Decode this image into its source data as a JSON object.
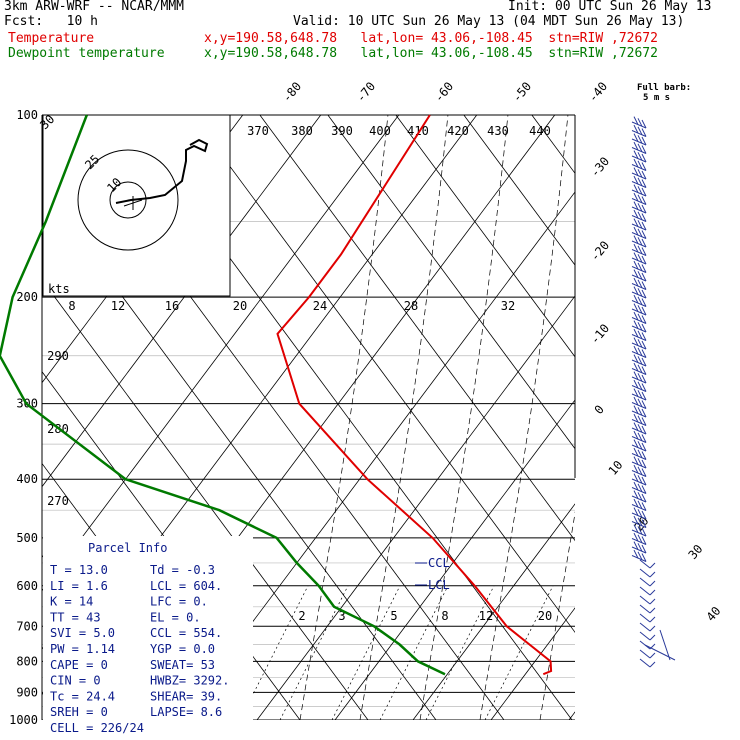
{
  "header": {
    "line1_left": "3km ARW-WRF -- NCAR/MMM",
    "line1_right": "Init: 00 UTC Sun 26 May 13",
    "line2_left": "Fcst:   10 h",
    "line2_right": "Valid: 10 UTC Sun 26 May 13 (04 MDT Sun 26 May 13)",
    "temp_label": "Temperature",
    "dew_label": "Dewpoint temperature",
    "station_info": "x,y=190.58,648.78   lat,lon= 43.06,-108.45  stn=RIW ,72672",
    "barb_legend_1": "Full barb:",
    "barb_legend_2": "5 m s"
  },
  "colors": {
    "temperature": "#e00000",
    "dewpoint": "#007a00",
    "parcel_info": "#0a1a8a",
    "barbs": "#2a3a9a"
  },
  "icons": {
    "wind_barbs": "wind-barb-icon",
    "hodograph": "hodograph-icon"
  },
  "chart_data": {
    "type": "skew-t",
    "pressure_levels": [
      100,
      200,
      300,
      400,
      500,
      600,
      700,
      800,
      900,
      1000
    ],
    "temp_labels_top": [
      "-80",
      "-70",
      "-60",
      "-50",
      "-40"
    ],
    "temp_labels_right": [
      "-30",
      "-20",
      "-10",
      "0",
      "10",
      "20",
      "30",
      "40"
    ],
    "theta_labels_top": [
      "370",
      "380",
      "390",
      "400",
      "410",
      "420",
      "430",
      "440"
    ],
    "theta_labels_left": [
      "290",
      "280",
      "270"
    ],
    "mixing_ratio_labels": [
      "2",
      "3",
      "5",
      "8",
      "12",
      "20"
    ],
    "hodo_speed_labels": [
      "8",
      "12",
      "16",
      "20",
      "24",
      "28",
      "32"
    ],
    "hodo_ring_labels": [
      "30",
      "25",
      "10"
    ],
    "hodo_unit": "kts",
    "temperature_profile": {
      "name": "Temperature",
      "p": [
        100,
        130,
        170,
        200,
        230,
        300,
        400,
        500,
        600,
        700,
        800,
        830,
        840
      ],
      "t": [
        -56,
        -55,
        -54,
        -54,
        -54.5,
        -45,
        -29,
        -15,
        -5,
        3,
        12,
        13,
        12.3
      ]
    },
    "dewpoint_profile": {
      "name": "Dewpoint temperature",
      "p": [
        100,
        150,
        200,
        250,
        300,
        400,
        450,
        500,
        550,
        600,
        650,
        700,
        750,
        800,
        840
      ],
      "td": [
        -100,
        -95,
        -92,
        -88,
        -80,
        -60,
        -45,
        -35,
        -30,
        -25,
        -21,
        -14,
        -9,
        -5,
        -0.3
      ]
    },
    "annotations": [
      "CCL",
      "LCL"
    ]
  },
  "parcel": {
    "title": "Parcel Info",
    "rows": [
      [
        "T  =    13.0",
        "Td =  -0.3"
      ],
      [
        "LI =     1.6",
        "LCL =  604."
      ],
      [
        "K  =      14",
        "LFC =    0."
      ],
      [
        "TT =      43",
        "EL  =    0."
      ],
      [
        "SVI =    5.0",
        "CCL =  554."
      ],
      [
        "PW =    1.14",
        "YGP =   0.0"
      ],
      [
        "CAPE =     0",
        "SWEAT=   53"
      ],
      [
        "CIN =      0",
        "HWBZ= 3292."
      ],
      [
        "Tc =    24.4",
        "SHEAR=  39."
      ],
      [
        "SREH =     0",
        "LAPSE=  8.6"
      ],
      [
        "CELL = 226/24",
        ""
      ]
    ]
  }
}
